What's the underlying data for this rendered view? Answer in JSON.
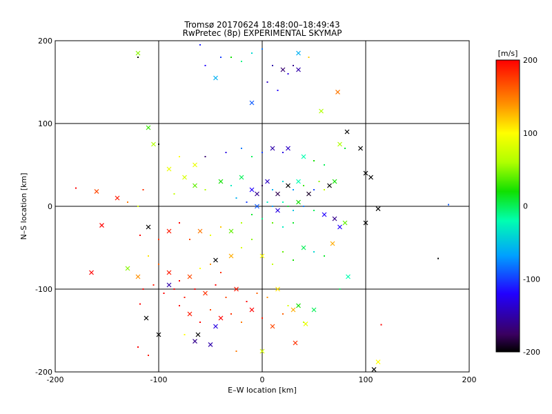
{
  "chart_data": {
    "type": "scatter",
    "title": "Tromsø 20170624 18:48:00–18:49:43",
    "subtitle": "RwPretec (8p) EXPERIMENTAL SKYMAP",
    "xlabel": "E–W location [km]",
    "ylabel": "N–S location [km]",
    "xlim": [
      -200,
      200
    ],
    "ylim": [
      -200,
      200
    ],
    "x_ticks": [
      -200,
      -100,
      0,
      100,
      200
    ],
    "y_ticks": [
      -200,
      -100,
      0,
      100,
      200
    ],
    "grid": true,
    "colorbar": {
      "label": "[m/s]",
      "range": [
        -200,
        200
      ],
      "ticks": [
        200,
        100,
        0,
        -100,
        -200
      ],
      "colormap": "rainbow",
      "position": "right"
    },
    "marker_types": [
      "dot",
      "x"
    ],
    "points": [
      {
        "x": -45,
        "y": 155,
        "v": -60,
        "m": "x"
      },
      {
        "x": -30,
        "y": 180,
        "v": 20,
        "m": "dot"
      },
      {
        "x": -20,
        "y": 175,
        "v": -10,
        "m": "dot"
      },
      {
        "x": -10,
        "y": 185,
        "v": -40,
        "m": "dot"
      },
      {
        "x": 0,
        "y": 190,
        "v": -80,
        "m": "dot"
      },
      {
        "x": 10,
        "y": 170,
        "v": -150,
        "m": "dot"
      },
      {
        "x": 20,
        "y": 165,
        "v": -170,
        "m": "x"
      },
      {
        "x": 25,
        "y": 160,
        "v": -130,
        "m": "dot"
      },
      {
        "x": 30,
        "y": 170,
        "v": -160,
        "m": "dot"
      },
      {
        "x": 35,
        "y": 165,
        "v": -150,
        "m": "x"
      },
      {
        "x": -55,
        "y": 170,
        "v": -120,
        "m": "dot"
      },
      {
        "x": -40,
        "y": 180,
        "v": -100,
        "m": "dot"
      },
      {
        "x": 5,
        "y": 150,
        "v": -140,
        "m": "dot"
      },
      {
        "x": 15,
        "y": 140,
        "v": -120,
        "m": "dot"
      },
      {
        "x": -60,
        "y": 195,
        "v": -110,
        "m": "dot"
      },
      {
        "x": -10,
        "y": 125,
        "v": -90,
        "m": "x"
      },
      {
        "x": 73,
        "y": 138,
        "v": 150,
        "m": "x"
      },
      {
        "x": 57,
        "y": 115,
        "v": 60,
        "m": "x"
      },
      {
        "x": 35,
        "y": 185,
        "v": -60,
        "m": "x"
      },
      {
        "x": 45,
        "y": 180,
        "v": 120,
        "m": "dot"
      },
      {
        "x": -120,
        "y": 185,
        "v": 50,
        "m": "x"
      },
      {
        "x": -120,
        "y": 180,
        "v": -200,
        "m": "dot"
      },
      {
        "x": -110,
        "y": 95,
        "v": 30,
        "m": "x"
      },
      {
        "x": -105,
        "y": 75,
        "v": 60,
        "m": "x"
      },
      {
        "x": -100,
        "y": 75,
        "v": -200,
        "m": "dot"
      },
      {
        "x": -90,
        "y": 45,
        "v": 90,
        "m": "x"
      },
      {
        "x": -65,
        "y": 50,
        "v": 90,
        "m": "x"
      },
      {
        "x": -80,
        "y": 60,
        "v": 100,
        "m": "dot"
      },
      {
        "x": -55,
        "y": 60,
        "v": -170,
        "m": "dot"
      },
      {
        "x": -35,
        "y": 65,
        "v": -130,
        "m": "dot"
      },
      {
        "x": -20,
        "y": 70,
        "v": -80,
        "m": "dot"
      },
      {
        "x": -10,
        "y": 60,
        "v": 0,
        "m": "dot"
      },
      {
        "x": 0,
        "y": 65,
        "v": -100,
        "m": "dot"
      },
      {
        "x": 10,
        "y": 70,
        "v": -150,
        "m": "x"
      },
      {
        "x": 20,
        "y": 65,
        "v": -130,
        "m": "dot"
      },
      {
        "x": 25,
        "y": 70,
        "v": -140,
        "m": "x"
      },
      {
        "x": 40,
        "y": 60,
        "v": -20,
        "m": "x"
      },
      {
        "x": 50,
        "y": 55,
        "v": 20,
        "m": "dot"
      },
      {
        "x": 60,
        "y": 50,
        "v": 0,
        "m": "dot"
      },
      {
        "x": 75,
        "y": 75,
        "v": 60,
        "m": "x"
      },
      {
        "x": 80,
        "y": 70,
        "v": 10,
        "m": "dot"
      },
      {
        "x": 95,
        "y": 70,
        "v": -200,
        "m": "x"
      },
      {
        "x": 100,
        "y": 40,
        "v": -200,
        "m": "x"
      },
      {
        "x": 105,
        "y": 35,
        "v": -200,
        "m": "x"
      },
      {
        "x": 82,
        "y": 90,
        "v": -200,
        "m": "x"
      },
      {
        "x": -140,
        "y": 10,
        "v": 190,
        "m": "x"
      },
      {
        "x": -160,
        "y": 18,
        "v": 170,
        "m": "x"
      },
      {
        "x": -180,
        "y": 22,
        "v": 200,
        "m": "dot"
      },
      {
        "x": -130,
        "y": 5,
        "v": 150,
        "m": "dot"
      },
      {
        "x": -115,
        "y": 20,
        "v": 180,
        "m": "dot"
      },
      {
        "x": -120,
        "y": 0,
        "v": 80,
        "m": "dot"
      },
      {
        "x": -85,
        "y": 15,
        "v": 70,
        "m": "dot"
      },
      {
        "x": -75,
        "y": 35,
        "v": 80,
        "m": "x"
      },
      {
        "x": -65,
        "y": 25,
        "v": 40,
        "m": "x"
      },
      {
        "x": -55,
        "y": 20,
        "v": 60,
        "m": "dot"
      },
      {
        "x": -40,
        "y": 30,
        "v": 20,
        "m": "x"
      },
      {
        "x": -30,
        "y": 25,
        "v": -30,
        "m": "dot"
      },
      {
        "x": -20,
        "y": 35,
        "v": 0,
        "m": "x"
      },
      {
        "x": -10,
        "y": 20,
        "v": -120,
        "m": "x"
      },
      {
        "x": -5,
        "y": 15,
        "v": -160,
        "m": "x"
      },
      {
        "x": 0,
        "y": 25,
        "v": -180,
        "m": "dot"
      },
      {
        "x": 5,
        "y": 30,
        "v": -140,
        "m": "x"
      },
      {
        "x": 10,
        "y": 20,
        "v": -60,
        "m": "dot"
      },
      {
        "x": 15,
        "y": 15,
        "v": -180,
        "m": "x"
      },
      {
        "x": 20,
        "y": 30,
        "v": -40,
        "m": "dot"
      },
      {
        "x": 25,
        "y": 25,
        "v": -200,
        "m": "x"
      },
      {
        "x": 30,
        "y": 20,
        "v": -70,
        "m": "dot"
      },
      {
        "x": 35,
        "y": 30,
        "v": -20,
        "m": "x"
      },
      {
        "x": 40,
        "y": 25,
        "v": 30,
        "m": "dot"
      },
      {
        "x": 45,
        "y": 15,
        "v": -190,
        "m": "x"
      },
      {
        "x": 50,
        "y": 20,
        "v": -100,
        "m": "dot"
      },
      {
        "x": 55,
        "y": 30,
        "v": 50,
        "m": "dot"
      },
      {
        "x": 60,
        "y": 20,
        "v": 70,
        "m": "dot"
      },
      {
        "x": 65,
        "y": 25,
        "v": -200,
        "m": "x"
      },
      {
        "x": 70,
        "y": 30,
        "v": 20,
        "m": "x"
      },
      {
        "x": -25,
        "y": 10,
        "v": -60,
        "m": "dot"
      },
      {
        "x": -15,
        "y": 5,
        "v": -100,
        "m": "dot"
      },
      {
        "x": -5,
        "y": 0,
        "v": -90,
        "m": "x"
      },
      {
        "x": 5,
        "y": 5,
        "v": -30,
        "m": "dot"
      },
      {
        "x": 10,
        "y": 0,
        "v": -70,
        "m": "dot"
      },
      {
        "x": 15,
        "y": -5,
        "v": -130,
        "m": "x"
      },
      {
        "x": 20,
        "y": 5,
        "v": -20,
        "m": "dot"
      },
      {
        "x": 25,
        "y": 0,
        "v": 10,
        "m": "dot"
      },
      {
        "x": 30,
        "y": -5,
        "v": -50,
        "m": "dot"
      },
      {
        "x": 35,
        "y": 5,
        "v": 20,
        "m": "x"
      },
      {
        "x": 40,
        "y": 0,
        "v": -80,
        "m": "dot"
      },
      {
        "x": 50,
        "y": -5,
        "v": 0,
        "m": "dot"
      },
      {
        "x": 60,
        "y": -10,
        "v": -120,
        "m": "x"
      },
      {
        "x": 70,
        "y": -15,
        "v": -160,
        "m": "x"
      },
      {
        "x": 75,
        "y": -25,
        "v": -120,
        "m": "x"
      },
      {
        "x": 80,
        "y": -20,
        "v": 40,
        "m": "x"
      },
      {
        "x": 100,
        "y": -20,
        "v": -200,
        "m": "x"
      },
      {
        "x": 112,
        "y": -3,
        "v": -200,
        "m": "x"
      },
      {
        "x": 180,
        "y": 2,
        "v": -90,
        "m": "dot"
      },
      {
        "x": -10,
        "y": -10,
        "v": 10,
        "m": "dot"
      },
      {
        "x": 0,
        "y": -15,
        "v": -10,
        "m": "dot"
      },
      {
        "x": 10,
        "y": -20,
        "v": 40,
        "m": "dot"
      },
      {
        "x": 20,
        "y": -25,
        "v": -30,
        "m": "dot"
      },
      {
        "x": 30,
        "y": -20,
        "v": 10,
        "m": "dot"
      },
      {
        "x": -20,
        "y": -20,
        "v": 60,
        "m": "dot"
      },
      {
        "x": -30,
        "y": -30,
        "v": 40,
        "m": "x"
      },
      {
        "x": -40,
        "y": -25,
        "v": 120,
        "m": "dot"
      },
      {
        "x": -50,
        "y": -35,
        "v": 90,
        "m": "dot"
      },
      {
        "x": -60,
        "y": -30,
        "v": 150,
        "m": "x"
      },
      {
        "x": -70,
        "y": -40,
        "v": 170,
        "m": "dot"
      },
      {
        "x": -80,
        "y": -20,
        "v": 200,
        "m": "dot"
      },
      {
        "x": -90,
        "y": -30,
        "v": 190,
        "m": "x"
      },
      {
        "x": -100,
        "y": -40,
        "v": 180,
        "m": "dot"
      },
      {
        "x": -110,
        "y": -25,
        "v": -200,
        "m": "x"
      },
      {
        "x": -118,
        "y": -35,
        "v": 200,
        "m": "dot"
      },
      {
        "x": -155,
        "y": -23,
        "v": 200,
        "m": "x"
      },
      {
        "x": -165,
        "y": -80,
        "v": 200,
        "m": "x"
      },
      {
        "x": -130,
        "y": -75,
        "v": 50,
        "m": "x"
      },
      {
        "x": -120,
        "y": -85,
        "v": 140,
        "m": "x"
      },
      {
        "x": -110,
        "y": -60,
        "v": 110,
        "m": "dot"
      },
      {
        "x": -100,
        "y": -70,
        "v": 160,
        "m": "dot"
      },
      {
        "x": -90,
        "y": -80,
        "v": 190,
        "m": "x"
      },
      {
        "x": -80,
        "y": -90,
        "v": 200,
        "m": "dot"
      },
      {
        "x": -70,
        "y": -85,
        "v": 170,
        "m": "x"
      },
      {
        "x": -60,
        "y": -75,
        "v": 100,
        "m": "dot"
      },
      {
        "x": -50,
        "y": -70,
        "v": 140,
        "m": "dot"
      },
      {
        "x": -45,
        "y": -65,
        "v": -200,
        "m": "x"
      },
      {
        "x": -40,
        "y": -80,
        "v": 180,
        "m": "dot"
      },
      {
        "x": -30,
        "y": -60,
        "v": 130,
        "m": "x"
      },
      {
        "x": -20,
        "y": -50,
        "v": 80,
        "m": "dot"
      },
      {
        "x": -10,
        "y": -40,
        "v": 50,
        "m": "dot"
      },
      {
        "x": 0,
        "y": -60,
        "v": 100,
        "m": "x"
      },
      {
        "x": 10,
        "y": -70,
        "v": 70,
        "m": "dot"
      },
      {
        "x": 20,
        "y": -55,
        "v": 40,
        "m": "dot"
      },
      {
        "x": 30,
        "y": -65,
        "v": 20,
        "m": "dot"
      },
      {
        "x": 40,
        "y": -50,
        "v": 0,
        "m": "x"
      },
      {
        "x": 50,
        "y": -55,
        "v": -40,
        "m": "dot"
      },
      {
        "x": 60,
        "y": -60,
        "v": 10,
        "m": "dot"
      },
      {
        "x": 68,
        "y": -45,
        "v": 130,
        "m": "x"
      },
      {
        "x": 83,
        "y": -85,
        "v": -20,
        "m": "x"
      },
      {
        "x": 75,
        "y": -100,
        "v": 0,
        "m": "dot"
      },
      {
        "x": -115,
        "y": -100,
        "v": 200,
        "m": "dot"
      },
      {
        "x": -105,
        "y": -95,
        "v": 190,
        "m": "dot"
      },
      {
        "x": -95,
        "y": -105,
        "v": 200,
        "m": "dot"
      },
      {
        "x": -90,
        "y": -95,
        "v": -150,
        "m": "x"
      },
      {
        "x": -85,
        "y": -100,
        "v": 200,
        "m": "dot"
      },
      {
        "x": -75,
        "y": -110,
        "v": 190,
        "m": "dot"
      },
      {
        "x": -65,
        "y": -100,
        "v": 200,
        "m": "dot"
      },
      {
        "x": -55,
        "y": -105,
        "v": 180,
        "m": "x"
      },
      {
        "x": -45,
        "y": -95,
        "v": 200,
        "m": "dot"
      },
      {
        "x": -35,
        "y": -110,
        "v": 170,
        "m": "dot"
      },
      {
        "x": -25,
        "y": -100,
        "v": 190,
        "m": "x"
      },
      {
        "x": -15,
        "y": -115,
        "v": 200,
        "m": "dot"
      },
      {
        "x": -5,
        "y": -105,
        "v": 160,
        "m": "dot"
      },
      {
        "x": 5,
        "y": -110,
        "v": 140,
        "m": "dot"
      },
      {
        "x": 15,
        "y": -100,
        "v": 110,
        "m": "x"
      },
      {
        "x": 25,
        "y": -120,
        "v": 80,
        "m": "dot"
      },
      {
        "x": -80,
        "y": -120,
        "v": 200,
        "m": "dot"
      },
      {
        "x": -70,
        "y": -130,
        "v": 190,
        "m": "x"
      },
      {
        "x": -60,
        "y": -140,
        "v": 200,
        "m": "dot"
      },
      {
        "x": -50,
        "y": -125,
        "v": 170,
        "m": "dot"
      },
      {
        "x": -40,
        "y": -135,
        "v": 200,
        "m": "x"
      },
      {
        "x": -30,
        "y": -130,
        "v": 180,
        "m": "dot"
      },
      {
        "x": -20,
        "y": -140,
        "v": 150,
        "m": "dot"
      },
      {
        "x": -10,
        "y": -125,
        "v": 200,
        "m": "x"
      },
      {
        "x": 0,
        "y": -135,
        "v": 190,
        "m": "dot"
      },
      {
        "x": 10,
        "y": -145,
        "v": 170,
        "m": "x"
      },
      {
        "x": 20,
        "y": -130,
        "v": 160,
        "m": "dot"
      },
      {
        "x": 30,
        "y": -125,
        "v": 130,
        "m": "x"
      },
      {
        "x": 40,
        "y": -140,
        "v": 60,
        "m": "dot"
      },
      {
        "x": 35,
        "y": -120,
        "v": 20,
        "m": "x"
      },
      {
        "x": 50,
        "y": -125,
        "v": 0,
        "m": "x"
      },
      {
        "x": -112,
        "y": -135,
        "v": -200,
        "m": "x"
      },
      {
        "x": -118,
        "y": -118,
        "v": 200,
        "m": "dot"
      },
      {
        "x": -100,
        "y": -155,
        "v": -200,
        "m": "x"
      },
      {
        "x": -62,
        "y": -155,
        "v": -200,
        "m": "x"
      },
      {
        "x": -65,
        "y": -163,
        "v": -160,
        "m": "x"
      },
      {
        "x": -50,
        "y": -167,
        "v": -150,
        "m": "x"
      },
      {
        "x": -45,
        "y": -145,
        "v": -130,
        "m": "x"
      },
      {
        "x": -75,
        "y": -155,
        "v": 100,
        "m": "dot"
      },
      {
        "x": -25,
        "y": -175,
        "v": 150,
        "m": "dot"
      },
      {
        "x": 0,
        "y": -175,
        "v": 80,
        "m": "x"
      },
      {
        "x": 32,
        "y": -165,
        "v": 180,
        "m": "x"
      },
      {
        "x": 42,
        "y": -142,
        "v": 90,
        "m": "x"
      },
      {
        "x": 115,
        "y": -143,
        "v": 200,
        "m": "dot"
      },
      {
        "x": 112,
        "y": -188,
        "v": 100,
        "m": "x"
      },
      {
        "x": 108,
        "y": -197,
        "v": -200,
        "m": "x"
      },
      {
        "x": 170,
        "y": -63,
        "v": -200,
        "m": "dot"
      },
      {
        "x": -120,
        "y": -170,
        "v": 200,
        "m": "dot"
      },
      {
        "x": -110,
        "y": -180,
        "v": 190,
        "m": "dot"
      }
    ]
  }
}
